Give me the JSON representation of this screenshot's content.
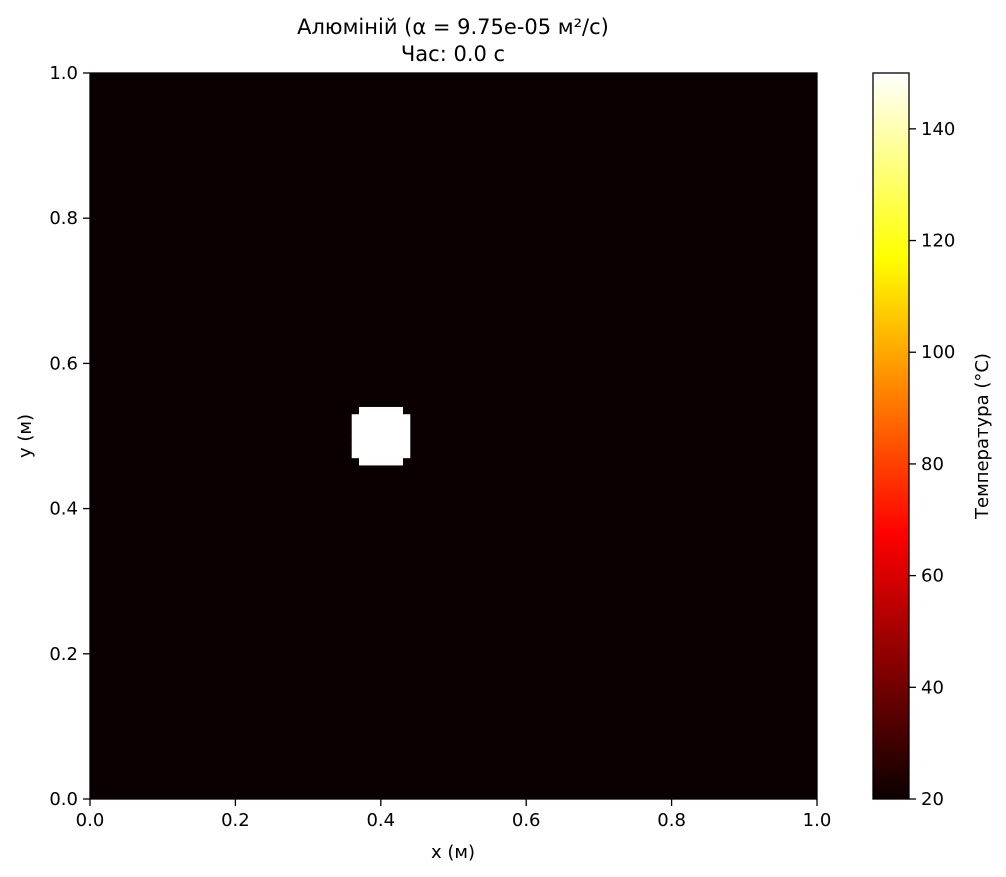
{
  "chart_data": {
    "type": "heatmap",
    "title_line1": "Алюміній (α = 9.75e-05 м²/с)",
    "title_line2": "Час: 0.0 с",
    "xlabel": "x (м)",
    "ylabel": "y (м)",
    "xlim": [
      0.0,
      1.0
    ],
    "ylim": [
      0.0,
      1.0
    ],
    "x_ticks": [
      "0.0",
      "0.2",
      "0.4",
      "0.6",
      "0.8",
      "1.0"
    ],
    "y_ticks": [
      "0.0",
      "0.2",
      "0.4",
      "0.6",
      "0.8",
      "1.0"
    ],
    "grid": false,
    "colormap": "hot",
    "background_temperature": 20,
    "hot_spot": {
      "shape": "disc",
      "center_x": 0.4,
      "center_y": 0.5,
      "radius": 0.045,
      "temperature": 150
    },
    "colorbar": {
      "label": "Температура (°C)",
      "range": [
        20,
        150
      ],
      "ticks": [
        "20",
        "40",
        "60",
        "80",
        "100",
        "120",
        "140"
      ],
      "tick_values": [
        20,
        40,
        60,
        80,
        100,
        120,
        140
      ]
    },
    "colors": {
      "background_cell": "#0b0000",
      "hot_cell": "#ffffff",
      "cmap_stops": [
        "#0b0000",
        "#ff0000",
        "#ffff00",
        "#ffffff"
      ]
    }
  }
}
